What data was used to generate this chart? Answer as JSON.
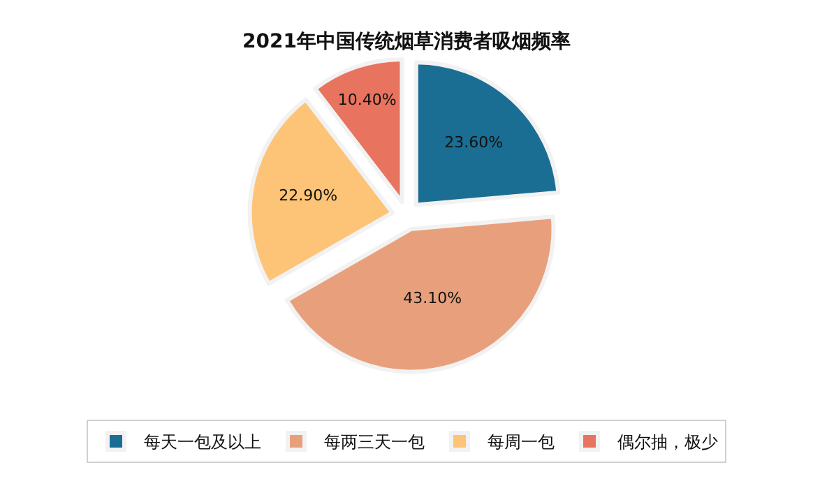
{
  "chart_data": {
    "type": "pie",
    "title": "2021年中国传统烟草消费者吸烟频率",
    "categories": [
      "每天一包及以上",
      "每两三天一包",
      "每周一包",
      "偶尔抽，极少"
    ],
    "values": [
      23.6,
      43.1,
      22.9,
      10.4
    ],
    "colors": [
      "#1b6e93",
      "#e8a07c",
      "#fdc477",
      "#e8735f"
    ],
    "value_labels": [
      "23.60%",
      "43.10%",
      "22.90%",
      "10.40%"
    ],
    "legend": "bottom"
  }
}
